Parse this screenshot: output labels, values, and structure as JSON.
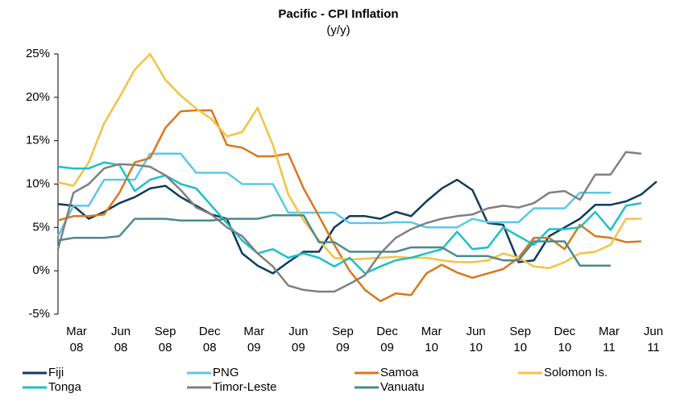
{
  "chart_data": {
    "type": "line",
    "title": "Pacific - CPI Inflation",
    "subtitle": "(y/y)",
    "categories": [
      "Mar 08",
      null,
      null,
      "Jun 08",
      null,
      null,
      "Sep 08",
      null,
      null,
      "Dec 08",
      null,
      null,
      "Mar 09",
      null,
      null,
      "Jun 09",
      null,
      null,
      "Sep 09",
      null,
      null,
      "Dec 09",
      null,
      null,
      "Mar 10",
      null,
      null,
      "Jun 10",
      null,
      null,
      "Sep 10",
      null,
      null,
      "Dec 10",
      null,
      null,
      "Mar 11",
      null,
      null,
      "Jun 11"
    ],
    "ylim": [
      -5,
      25
    ],
    "yticks": [
      {
        "value": -5,
        "label": "-5%"
      },
      {
        "value": 0,
        "label": "0%"
      },
      {
        "value": 5,
        "label": "5%"
      },
      {
        "value": 10,
        "label": "10%"
      },
      {
        "value": 15,
        "label": "15%"
      },
      {
        "value": 20,
        "label": "20%"
      },
      {
        "value": 25,
        "label": "25%"
      }
    ],
    "legend": "bottom",
    "series": [
      {
        "name": "Fiji",
        "color": "#0d3b5e",
        "values": [
          7.7,
          7.5,
          6,
          6.8,
          7.8,
          8.5,
          9.5,
          9.8,
          8.5,
          7.5,
          6.5,
          6,
          2,
          0.6,
          -0.3,
          1,
          2.2,
          2.2,
          5,
          6.3,
          6.3,
          6,
          6.8,
          6.3,
          8,
          9.5,
          10.5,
          9.3,
          5.5,
          5.3,
          1,
          1.2,
          4,
          5,
          6,
          7.6,
          7.6,
          8,
          8.8,
          10.3
        ]
      },
      {
        "name": "PNG",
        "color": "#5bc8e8",
        "values": [
          4,
          7.5,
          7.5,
          10.5,
          10.5,
          10.5,
          13.5,
          13.5,
          13.5,
          11.3,
          11.3,
          11.3,
          10,
          10,
          10,
          6.7,
          6.7,
          6.7,
          6.7,
          5.5,
          5.5,
          5.5,
          5.6,
          5.6,
          5,
          5,
          5,
          6,
          5.6,
          5.6,
          5.6,
          7.2,
          7.2,
          7.2,
          9,
          9,
          9,
          null,
          null,
          null
        ]
      },
      {
        "name": "Samoa",
        "color": "#d9781a",
        "values": [
          5.8,
          6.3,
          6.3,
          6.5,
          9,
          12.5,
          13,
          16.5,
          18.4,
          18.5,
          18.5,
          14.5,
          14.2,
          13.2,
          13.2,
          13.5,
          9.5,
          6.3,
          3,
          0,
          -2.2,
          -3.5,
          -2.6,
          -2.8,
          -0.3,
          0.7,
          -0.2,
          -0.8,
          -0.3,
          0.2,
          1.5,
          3.8,
          3.8,
          2.5,
          5.3,
          4,
          3.8,
          3.3,
          3.4,
          null
        ]
      },
      {
        "name": "Solomon Is.",
        "color": "#f5c242",
        "values": [
          10.2,
          9.8,
          12.5,
          17,
          20,
          23.2,
          25,
          22,
          20.2,
          18.7,
          17.5,
          15.5,
          16,
          18.8,
          14.5,
          8.8,
          5.8,
          3.5,
          1.5,
          1.3,
          1.4,
          1.5,
          1.6,
          1.5,
          1.5,
          1.2,
          1,
          1,
          1.2,
          2,
          1.5,
          0.5,
          0.3,
          1,
          2,
          2.2,
          3,
          6,
          6,
          null
        ]
      },
      {
        "name": "Tonga",
        "color": "#1cc0c8",
        "values": [
          12,
          11.8,
          11.8,
          12.5,
          12.2,
          9.2,
          10.5,
          11,
          10,
          9.5,
          7.5,
          5.5,
          3.5,
          2,
          2.5,
          1.5,
          2,
          1.5,
          0.5,
          1.5,
          -0.3,
          0.5,
          1.2,
          1.5,
          2,
          2.5,
          4.5,
          2.5,
          2.7,
          5,
          4,
          3,
          4.8,
          4.8,
          5,
          6.8,
          4.7,
          7.5,
          7.8,
          null
        ]
      },
      {
        "name": "Timor-Leste",
        "color": "#808080",
        "values": [
          2.5,
          9,
          10,
          11.8,
          12.3,
          12.2,
          12,
          11,
          9.3,
          7.3,
          6.5,
          5,
          4,
          2,
          0.5,
          -1.7,
          -2.2,
          -2.4,
          -2.4,
          -1.5,
          -0.5,
          2,
          3.8,
          4.8,
          5.5,
          6,
          6.3,
          6.5,
          7.2,
          7.5,
          7.3,
          7.8,
          9,
          9.2,
          8.2,
          11.1,
          11.1,
          13.7,
          13.5,
          null
        ]
      },
      {
        "name": "Vanuatu",
        "color": "#4a8a8c",
        "values": [
          3.5,
          3.8,
          3.8,
          3.8,
          4,
          6,
          6,
          6,
          5.8,
          5.8,
          5.8,
          6,
          6,
          6,
          6.4,
          6.4,
          6.4,
          3.3,
          3.3,
          2.2,
          2.2,
          2.2,
          2.2,
          2.7,
          2.7,
          2.7,
          1.7,
          1.7,
          1.7,
          1.2,
          1.2,
          3.4,
          3.4,
          3.4,
          0.6,
          0.6,
          0.6,
          null,
          null,
          null
        ]
      }
    ]
  }
}
